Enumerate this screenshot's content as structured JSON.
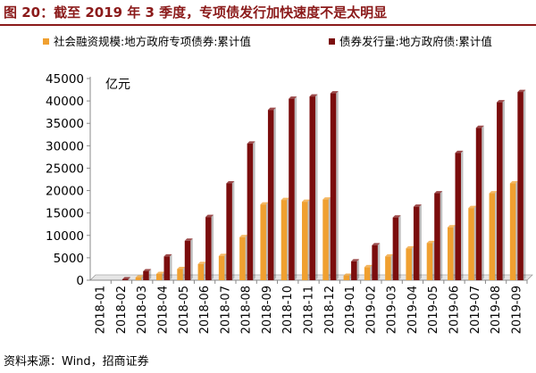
{
  "figure": {
    "title": "图 20：截至 2019 年 3 季度，专项债发行加快速度不是太明显",
    "source": "资料来源：Wind，招商证券"
  },
  "colors": {
    "title": "#8b1a1a",
    "series_orange": "#f0a030",
    "series_darkred": "#7b0d0d",
    "axis": "#888888"
  },
  "chart_data": {
    "type": "bar",
    "ylabel": "亿元",
    "ylim": [
      0,
      45000
    ],
    "yticks": [
      0,
      5000,
      10000,
      15000,
      20000,
      25000,
      30000,
      35000,
      40000,
      45000
    ],
    "grid": false,
    "legend_position": "top",
    "categories": [
      "2018-01",
      "2018-02",
      "2018-03",
      "2018-04",
      "2018-05",
      "2018-06",
      "2018-07",
      "2018-08",
      "2018-09",
      "2018-10",
      "2018-11",
      "2018-12",
      "2019-01",
      "2019-02",
      "2019-03",
      "2019-04",
      "2019-05",
      "2019-06",
      "2019-07",
      "2019-08",
      "2019-09"
    ],
    "series": [
      {
        "name": "社会融资规模:地方政府专项债券:累计值",
        "color": "#f0a030",
        "values": [
          0,
          0,
          600,
          1400,
          2500,
          3600,
          5400,
          9600,
          16900,
          17900,
          17500,
          18000,
          1000,
          2900,
          5300,
          7100,
          8300,
          11800,
          16100,
          19400,
          21600
        ]
      },
      {
        "name": "债券发行量:地方政府债:累计值",
        "color": "#7b0d0d",
        "values": [
          0,
          200,
          2000,
          5300,
          8800,
          14100,
          21600,
          30500,
          38000,
          40500,
          41000,
          41700,
          4200,
          7800,
          14000,
          16400,
          19400,
          28400,
          34000,
          39700,
          42000
        ]
      }
    ]
  }
}
